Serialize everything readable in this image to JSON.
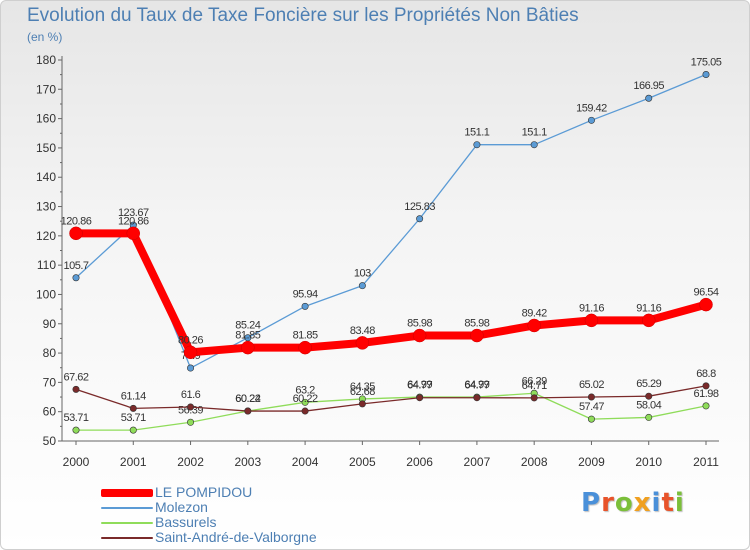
{
  "header": {
    "title": "Evolution du Taux de Taxe Foncière sur les Propriétés Non Bâties",
    "subtitle": "(en %)"
  },
  "logo": {
    "text": "Proxiti",
    "letter_colors": [
      "#4a90d9",
      "#e8532a",
      "#7bbf3a",
      "#f0a020",
      "#4a90d9",
      "#e8532a",
      "#7bbf3a"
    ]
  },
  "chart_data": {
    "type": "line",
    "x": [
      "2000",
      "2001",
      "2002",
      "2003",
      "2004",
      "2005",
      "2006",
      "2007",
      "2008",
      "2009",
      "2010",
      "2011"
    ],
    "ylim": [
      50,
      180
    ],
    "yticks": [
      50,
      60,
      70,
      80,
      90,
      100,
      110,
      120,
      130,
      140,
      150,
      160,
      170,
      180
    ],
    "grid": false,
    "legend_position": "bottom-left",
    "series": [
      {
        "name": "Molezon",
        "color": "#5b9bd5",
        "values": [
          105.7,
          123.67,
          74.9,
          85.24,
          95.94,
          103,
          125.83,
          151.1,
          151.1,
          159.42,
          166.95,
          175.05
        ],
        "labels": [
          "105.7",
          "123.67",
          "74.9",
          "85.24",
          "95.94",
          "103",
          "125.83",
          "151.1",
          "151.1",
          "159.42",
          "166.95",
          "175.05"
        ]
      },
      {
        "name": "Bassurels",
        "color": "#8fdc5a",
        "values": [
          53.71,
          53.71,
          56.39,
          60.24,
          63.2,
          64.35,
          64.99,
          64.99,
          66.29,
          57.47,
          58.04,
          61.98
        ],
        "labels": [
          "53.71",
          "53.71",
          "56.39",
          "60.24",
          "63.2",
          "64.35",
          "64.99",
          "64.99",
          "66.29",
          "57.47",
          "58.04",
          "61.98"
        ]
      },
      {
        "name": "Saint-André-de-Valborgne",
        "color": "#7a2a2a",
        "values": [
          67.62,
          61.14,
          61.6,
          60.22,
          60.22,
          62.68,
          64.77,
          64.77,
          64.71,
          65.02,
          65.29,
          68.8
        ],
        "labels": [
          "67.62",
          "61.14",
          "61.6",
          "60.22",
          "60.22",
          "62.68",
          "64.77",
          "64.77",
          "64.71",
          "65.02",
          "65.29",
          "68.8"
        ]
      },
      {
        "name": "LE POMPIDOU",
        "color": "#ff0000",
        "values": [
          120.86,
          120.86,
          80.26,
          81.85,
          81.85,
          83.48,
          85.98,
          85.98,
          89.42,
          91.16,
          91.16,
          96.54
        ],
        "labels": [
          "120.86",
          "120.86",
          "80.26",
          "81.85",
          "81.85",
          "83.48",
          "85.98",
          "85.98",
          "89.42",
          "91.16",
          "91.16",
          "96.54"
        ]
      }
    ],
    "legend_order": [
      "LE POMPIDOU",
      "Molezon",
      "Bassurels",
      "Saint-André-de-Valborgne"
    ]
  }
}
